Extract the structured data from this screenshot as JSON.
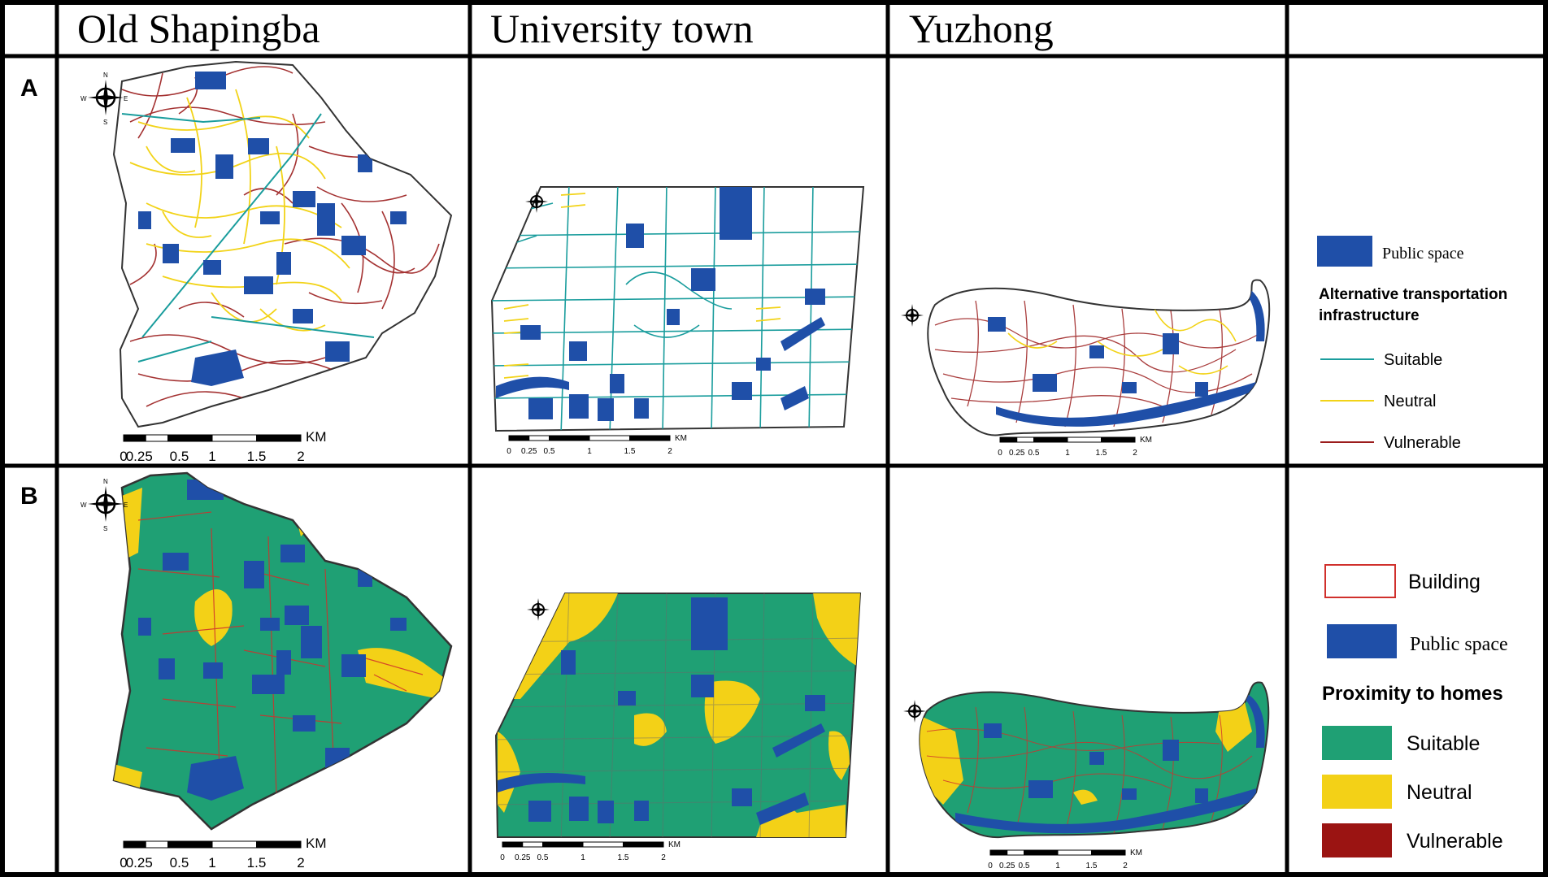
{
  "columns": [
    "Old Shapingba",
    "University town",
    "Yuzhong"
  ],
  "rows": [
    "A",
    "B"
  ],
  "compass": {
    "n": "N",
    "s": "S",
    "e": "E",
    "w": "W"
  },
  "scalebar": {
    "ticks": [
      "0",
      "0.25",
      "0.5",
      "1",
      "1.5",
      "2"
    ],
    "unit": "KM"
  },
  "legend_a": {
    "public_space": "Public space",
    "heading_line1": "Alternative transportation",
    "heading_line2": "infrastructure",
    "items": [
      {
        "label": "Suitable",
        "color": "#1a9d9d"
      },
      {
        "label": "Neutral",
        "color": "#f2d318"
      },
      {
        "label": "Vulnerable",
        "color": "#9b1c1c"
      }
    ]
  },
  "legend_b": {
    "building": "Building",
    "public_space": "Public space",
    "heading": "Proximity to homes",
    "items": [
      {
        "label": "Suitable",
        "color": "#1fa074"
      },
      {
        "label": "Neutral",
        "color": "#f3d117"
      },
      {
        "label": "Vulnerable",
        "color": "#9b1412"
      }
    ]
  },
  "colors": {
    "public_space": "#1f4fa8",
    "building_outline": "#d0302c",
    "transport_suitable": "#1a9d9d",
    "transport_neutral": "#f2d318",
    "transport_vulnerable": "#9b1c1c",
    "proximity_suitable": "#1fa074",
    "proximity_neutral": "#f3d117",
    "proximity_vulnerable": "#9b1412"
  }
}
